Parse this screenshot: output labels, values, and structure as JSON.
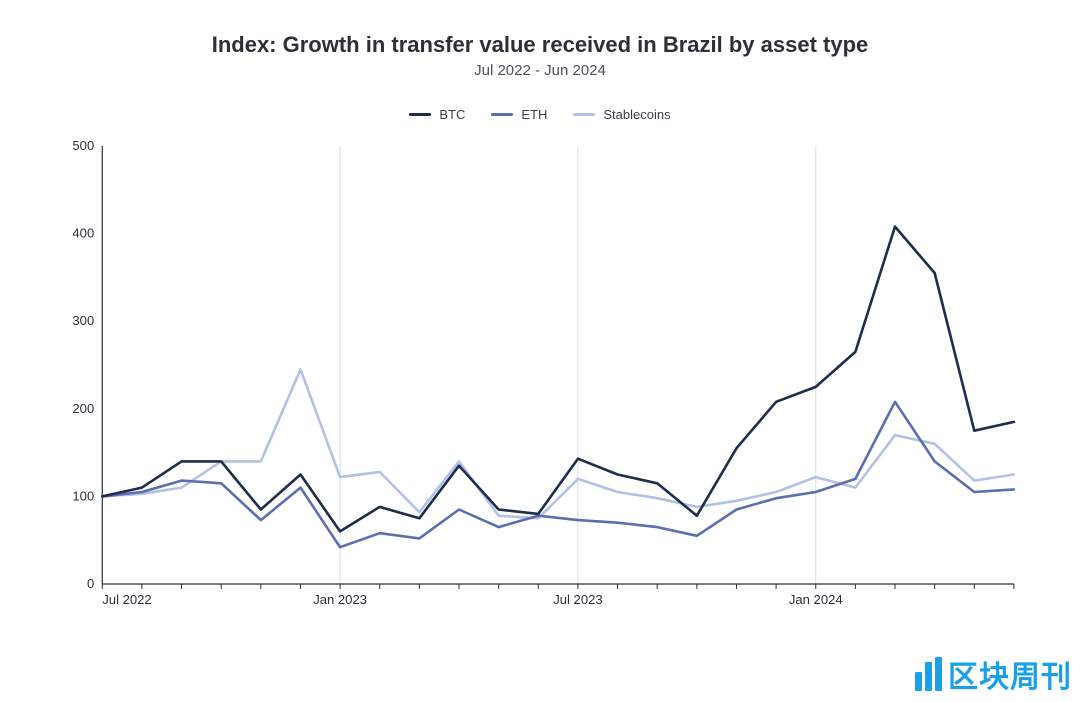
{
  "title": "Index: Growth in transfer value received in Brazil by asset type",
  "subtitle": "Jul 2022 - Jun 2024",
  "colors": {
    "btc": "#1f2c4d",
    "eth": "#5d6eaf",
    "stable": "#b3c1e6",
    "grid": "#dadde2",
    "axis": "#2b2f38",
    "bg": "#ffffff",
    "title": "#2b2f38",
    "subtitle": "#4a4f59",
    "logo": "#1aa0e6"
  },
  "chart": {
    "type": "line",
    "line_width": 2.6,
    "ylim": [
      0,
      500
    ],
    "yticks": [
      0,
      100,
      200,
      300,
      400,
      500
    ],
    "x_count": 24,
    "x_major": [
      {
        "idx": 0,
        "label": "Jul 2022"
      },
      {
        "idx": 6,
        "label": "Jan 2023"
      },
      {
        "idx": 12,
        "label": "Jul 2023"
      },
      {
        "idx": 18,
        "label": "Jan 2024"
      }
    ],
    "legend": [
      {
        "key": "btc",
        "label": "BTC"
      },
      {
        "key": "eth",
        "label": "ETH"
      },
      {
        "key": "stable",
        "label": "Stablecoins"
      }
    ],
    "series": {
      "btc": [
        100,
        110,
        140,
        140,
        85,
        125,
        60,
        88,
        75,
        135,
        85,
        80,
        143,
        125,
        115,
        78,
        155,
        208,
        225,
        265,
        408,
        355,
        175,
        185
      ],
      "eth": [
        100,
        105,
        118,
        115,
        73,
        110,
        42,
        58,
        52,
        85,
        65,
        78,
        73,
        70,
        65,
        55,
        85,
        98,
        105,
        120,
        208,
        140,
        105,
        108
      ],
      "stable": [
        100,
        103,
        110,
        140,
        140,
        245,
        122,
        128,
        82,
        140,
        78,
        75,
        120,
        105,
        98,
        88,
        95,
        105,
        122,
        110,
        170,
        160,
        118,
        125
      ]
    }
  },
  "logo": {
    "text": "区块周刊",
    "bar_heights_pct": [
      55,
      85,
      100
    ]
  }
}
